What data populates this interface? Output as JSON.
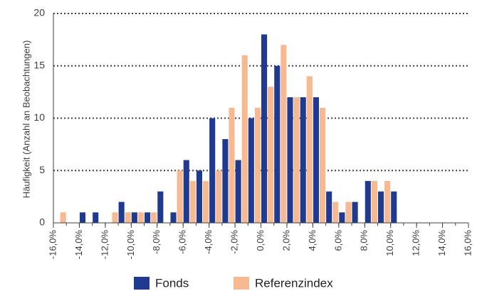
{
  "chart_data": {
    "type": "histogram",
    "y_label": "Häufigkeit (Anzahl an Beobachtungen)",
    "bins": [
      -16,
      -15,
      -14,
      -13,
      -12,
      -11,
      -10,
      -9,
      -8,
      -7,
      -6,
      -5,
      -4,
      -3,
      -2,
      -1,
      0,
      1,
      2,
      3,
      4,
      5,
      6,
      7,
      8,
      9,
      10,
      11,
      12,
      13,
      14,
      15,
      16
    ],
    "series": [
      {
        "name": "Fonds",
        "color": "#203a8f",
        "values": [
          0,
          0,
          1,
          1,
          0,
          2,
          1,
          1,
          3,
          1,
          6,
          5,
          10,
          8,
          6,
          10,
          18,
          15,
          12,
          12,
          12,
          3,
          1,
          2,
          4,
          3,
          3,
          0,
          0,
          0,
          0,
          0
        ]
      },
      {
        "name": "Referenzindex",
        "color": "#f6b991",
        "values": [
          1,
          0,
          0,
          0,
          1,
          1,
          1,
          1,
          0,
          5,
          4,
          4,
          5,
          11,
          16,
          11,
          13,
          17,
          12,
          14,
          11,
          2,
          2,
          0,
          4,
          4,
          0,
          0,
          0,
          0,
          0,
          0
        ]
      }
    ],
    "xlim": [
      -16,
      16
    ],
    "xticks": [
      {
        "value": -16,
        "label": "-16,0%"
      },
      {
        "value": -14,
        "label": "-14,0%"
      },
      {
        "value": -12,
        "label": "-12,0%"
      },
      {
        "value": -10,
        "label": "-10,0%"
      },
      {
        "value": -8,
        "label": "-8,0%"
      },
      {
        "value": -6,
        "label": "-6,0%"
      },
      {
        "value": -4,
        "label": "-4,0%"
      },
      {
        "value": -2,
        "label": "-2,0%"
      },
      {
        "value": 0,
        "label": "0,0%"
      },
      {
        "value": 2,
        "label": "2,0%"
      },
      {
        "value": 4,
        "label": "4,0%"
      },
      {
        "value": 6,
        "label": "6,0%"
      },
      {
        "value": 8,
        "label": "8,0%"
      },
      {
        "value": 10,
        "label": "10,0%"
      },
      {
        "value": 12,
        "label": "12,0%"
      },
      {
        "value": 14,
        "label": "14,0%"
      },
      {
        "value": 16,
        "label": "16,0%"
      }
    ],
    "ylim": [
      0,
      20
    ],
    "yticks": [
      0,
      5,
      10,
      15,
      20
    ],
    "grid": true
  }
}
